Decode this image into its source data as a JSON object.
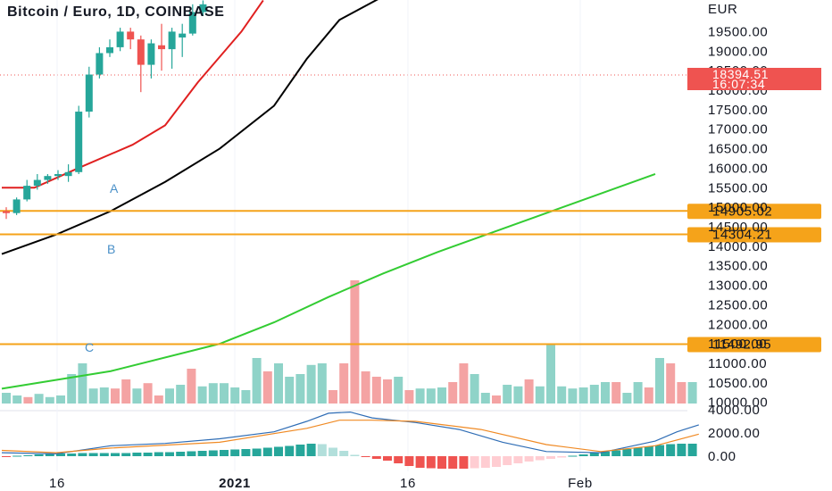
{
  "header": {
    "title": "Bitcoin / Euro, 1D, COINBASE",
    "currency": "EUR"
  },
  "price_badge": {
    "price": "18394.51",
    "countdown": "16:07:34",
    "color": "#ef5350"
  },
  "colors": {
    "up": "#26a69a",
    "down": "#ef5350",
    "vol_up": "#8fd3c8",
    "vol_down": "#f4a3a3",
    "ma_fast": "#e02020",
    "ma_slow": "#000000",
    "ma_long": "#33cc33",
    "level": "#f5a31a",
    "macd": "#2f6db5",
    "signal": "#f08a24"
  },
  "chart_data": [
    {
      "type": "candlestick",
      "title": "Bitcoin / Euro, 1D, COINBASE",
      "y_unit": "EUR",
      "ylim": [
        10000,
        20000
      ],
      "y_ticks": [
        "19500.00",
        "19000.00",
        "18500.00",
        "18000.00",
        "17500.00",
        "17000.00",
        "16500.00",
        "16000.00",
        "15500.00",
        "15000.00",
        "14500.00",
        "14000.00",
        "13500.00",
        "13000.00",
        "12500.00",
        "12000.00",
        "11500.00",
        "11000.00",
        "10500.00",
        "10000.00"
      ],
      "x_labels": [
        "16",
        "2021",
        "16",
        "Feb"
      ],
      "candles": [
        {
          "o": 14900,
          "h": 15000,
          "l": 14700,
          "c": 14850
        },
        {
          "o": 14850,
          "h": 15250,
          "l": 14800,
          "c": 15200
        },
        {
          "o": 15200,
          "h": 15700,
          "l": 15150,
          "c": 15550
        },
        {
          "o": 15550,
          "h": 15850,
          "l": 15450,
          "c": 15700
        },
        {
          "o": 15700,
          "h": 15850,
          "l": 15600,
          "c": 15800
        },
        {
          "o": 15800,
          "h": 15950,
          "l": 15700,
          "c": 15850
        },
        {
          "o": 15800,
          "h": 16100,
          "l": 15650,
          "c": 15900
        },
        {
          "o": 15900,
          "h": 17600,
          "l": 15850,
          "c": 17450
        },
        {
          "o": 17450,
          "h": 18600,
          "l": 17300,
          "c": 18400
        },
        {
          "o": 18400,
          "h": 19100,
          "l": 18300,
          "c": 18950
        },
        {
          "o": 18950,
          "h": 19300,
          "l": 18850,
          "c": 19100
        },
        {
          "o": 19100,
          "h": 19600,
          "l": 19000,
          "c": 19500
        },
        {
          "o": 19500,
          "h": 19600,
          "l": 19050,
          "c": 19300
        },
        {
          "o": 19300,
          "h": 19400,
          "l": 17950,
          "c": 18650
        },
        {
          "o": 18650,
          "h": 19300,
          "l": 18300,
          "c": 19200
        },
        {
          "o": 19150,
          "h": 19700,
          "l": 18500,
          "c": 19050
        },
        {
          "o": 19050,
          "h": 19600,
          "l": 18550,
          "c": 19500
        },
        {
          "o": 19350,
          "h": 19700,
          "l": 18850,
          "c": 19450
        },
        {
          "o": 19450,
          "h": 20200,
          "l": 19400,
          "c": 20000
        },
        {
          "o": 20000,
          "h": 20300,
          "l": 19900,
          "c": 20200
        }
      ],
      "moving_averages": [
        {
          "name": "",
          "points": [
            [
              0,
              15500
            ],
            [
              3,
              15500
            ],
            [
              7,
              16000
            ],
            [
              12,
              16600
            ],
            [
              15,
              17100
            ],
            [
              18,
              18200
            ],
            [
              22,
              19500
            ],
            [
              24,
              20300
            ]
          ]
        },
        {
          "name": "",
          "points": [
            [
              0,
              13800
            ],
            [
              5,
              14300
            ],
            [
              10,
              14900
            ],
            [
              15,
              15650
            ],
            [
              20,
              16500
            ],
            [
              25,
              17600
            ],
            [
              28,
              18800
            ],
            [
              31,
              19800
            ],
            [
              35,
              20400
            ]
          ]
        },
        {
          "name": "",
          "points": [
            [
              0,
              10350
            ],
            [
              10,
              10800
            ],
            [
              20,
              11500
            ],
            [
              25,
              12050
            ],
            [
              30,
              12700
            ],
            [
              35,
              13300
            ],
            [
              40,
              13850
            ],
            [
              45,
              14350
            ],
            [
              50,
              14850
            ],
            [
              55,
              15350
            ],
            [
              60,
              15850
            ]
          ]
        }
      ],
      "levels": [
        {
          "price": 14905.02,
          "label": "14905.02",
          "zone": "A"
        },
        {
          "price": 14304.21,
          "label": "14304.21",
          "zone": "B"
        },
        {
          "price": 11492.95,
          "label": "11492.95",
          "zone": "C"
        }
      ],
      "zone_labels": [
        "A",
        "B",
        "C"
      ],
      "volume": [
        {
          "v": 0.2,
          "up": true
        },
        {
          "v": 0.15,
          "up": true
        },
        {
          "v": 0.12,
          "up": false
        },
        {
          "v": 0.18,
          "up": true
        },
        {
          "v": 0.12,
          "up": true
        },
        {
          "v": 0.15,
          "up": true
        },
        {
          "v": 0.55,
          "up": true
        },
        {
          "v": 0.75,
          "up": true
        },
        {
          "v": 0.28,
          "up": true
        },
        {
          "v": 0.3,
          "up": true
        },
        {
          "v": 0.28,
          "up": false
        },
        {
          "v": 0.45,
          "up": false
        },
        {
          "v": 0.28,
          "up": true
        },
        {
          "v": 0.38,
          "up": false
        },
        {
          "v": 0.15,
          "up": false
        },
        {
          "v": 0.28,
          "up": true
        },
        {
          "v": 0.35,
          "up": true
        },
        {
          "v": 0.65,
          "up": false
        },
        {
          "v": 0.32,
          "up": true
        },
        {
          "v": 0.38,
          "up": true
        },
        {
          "v": 0.38,
          "up": true
        },
        {
          "v": 0.3,
          "up": true
        },
        {
          "v": 0.25,
          "up": true
        },
        {
          "v": 0.85,
          "up": true
        },
        {
          "v": 0.6,
          "up": false
        },
        {
          "v": 0.75,
          "up": true
        },
        {
          "v": 0.5,
          "up": true
        },
        {
          "v": 0.55,
          "up": true
        },
        {
          "v": 0.72,
          "up": true
        },
        {
          "v": 0.75,
          "up": true
        },
        {
          "v": 0.25,
          "up": false
        },
        {
          "v": 0.75,
          "up": false
        },
        {
          "v": 2.3,
          "up": false
        },
        {
          "v": 0.6,
          "up": false
        },
        {
          "v": 0.5,
          "up": false
        },
        {
          "v": 0.45,
          "up": false
        },
        {
          "v": 0.5,
          "up": true
        },
        {
          "v": 0.25,
          "up": false
        },
        {
          "v": 0.28,
          "up": true
        },
        {
          "v": 0.28,
          "up": true
        },
        {
          "v": 0.3,
          "up": true
        },
        {
          "v": 0.4,
          "up": false
        },
        {
          "v": 0.75,
          "up": false
        },
        {
          "v": 0.55,
          "up": true
        },
        {
          "v": 0.2,
          "up": true
        },
        {
          "v": 0.15,
          "up": false
        },
        {
          "v": 0.35,
          "up": true
        },
        {
          "v": 0.32,
          "up": true
        },
        {
          "v": 0.45,
          "up": false
        },
        {
          "v": 0.32,
          "up": true
        },
        {
          "v": 1.1,
          "up": true
        },
        {
          "v": 0.32,
          "up": true
        },
        {
          "v": 0.28,
          "up": true
        },
        {
          "v": 0.3,
          "up": true
        },
        {
          "v": 0.35,
          "up": true
        },
        {
          "v": 0.4,
          "up": true
        },
        {
          "v": 0.4,
          "up": false
        },
        {
          "v": 0.2,
          "up": true
        },
        {
          "v": 0.4,
          "up": true
        },
        {
          "v": 0.3,
          "up": false
        },
        {
          "v": 0.85,
          "up": true
        },
        {
          "v": 0.75,
          "up": false
        },
        {
          "v": 0.4,
          "up": false
        },
        {
          "v": 0.4,
          "up": true
        }
      ],
      "macd_ylim": [
        0,
        4000
      ],
      "macd_ticks": [
        "4000.00",
        "2000.00",
        "0.00"
      ],
      "macd": [
        [
          0,
          300
        ],
        [
          5,
          200
        ],
        [
          10,
          900
        ],
        [
          15,
          1100
        ],
        [
          20,
          1500
        ],
        [
          25,
          2100
        ],
        [
          28,
          3000
        ],
        [
          30,
          3700
        ],
        [
          32,
          3800
        ],
        [
          34,
          3300
        ],
        [
          38,
          2900
        ],
        [
          42,
          2300
        ],
        [
          46,
          1200
        ],
        [
          50,
          400
        ],
        [
          55,
          300
        ],
        [
          58,
          900
        ],
        [
          60,
          1300
        ],
        [
          62,
          2100
        ],
        [
          64,
          2700
        ]
      ],
      "signal": [
        [
          0,
          500
        ],
        [
          5,
          300
        ],
        [
          10,
          700
        ],
        [
          20,
          1200
        ],
        [
          28,
          2400
        ],
        [
          31,
          3100
        ],
        [
          34,
          3100
        ],
        [
          38,
          3000
        ],
        [
          44,
          2300
        ],
        [
          50,
          1000
        ],
        [
          55,
          400
        ],
        [
          60,
          900
        ],
        [
          64,
          1900
        ]
      ],
      "histogram": [
        -0.05,
        0.05,
        0.1,
        0.2,
        0.25,
        0.3,
        0.3,
        0.35,
        0.35,
        0.35,
        0.35,
        0.35,
        0.4,
        0.4,
        0.45,
        0.45,
        0.5,
        0.55,
        0.6,
        0.65,
        0.7,
        0.75,
        0.8,
        0.85,
        0.95,
        1.05,
        1.15,
        1.3,
        1.4,
        1.35,
        0.95,
        0.6,
        0.15,
        -0.1,
        -0.3,
        -0.5,
        -0.8,
        -1.1,
        -1.3,
        -1.35,
        -1.4,
        -1.4,
        -1.4,
        -1.35,
        -1.3,
        -1.2,
        -1.0,
        -0.8,
        -0.6,
        -0.45,
        -0.3,
        -0.15,
        0.05,
        0.2,
        0.35,
        0.5,
        0.65,
        0.8,
        0.95,
        1.1,
        1.25,
        1.35,
        1.4,
        1.4
      ]
    }
  ]
}
